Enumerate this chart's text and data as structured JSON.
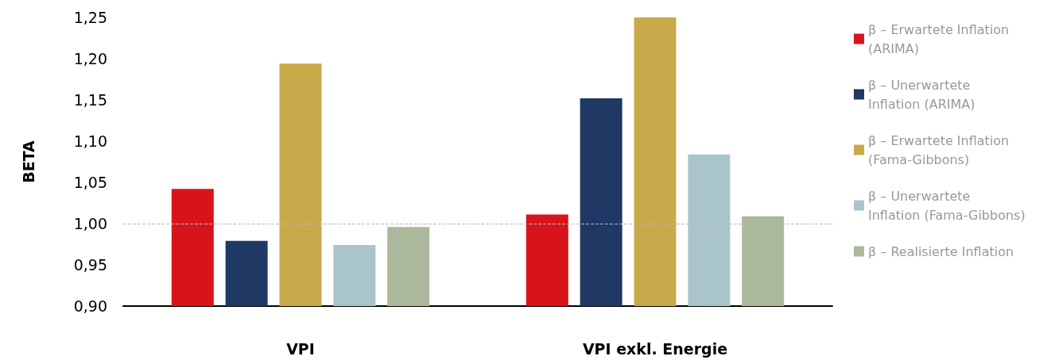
{
  "chart_data": {
    "type": "bar",
    "ylabel": "BETA",
    "categories": [
      "VPI",
      "VPI exkl. Energie"
    ],
    "series": [
      {
        "name": "β – Erwartete Inflation (ARIMA)",
        "color": "#d7141a",
        "values": [
          1.042,
          1.011
        ]
      },
      {
        "name": "β – Unerwartete Inflation (ARIMA)",
        "color": "#1f3864",
        "values": [
          0.979,
          1.152
        ]
      },
      {
        "name": "β – Erwartete Inflation (Fama-Gibbons)",
        "color": "#c8aa4b",
        "values": [
          1.194,
          1.25
        ]
      },
      {
        "name": "β – Unerwartete Inflation (Fama-Gibbons)",
        "color": "#a9c5ca",
        "values": [
          0.974,
          1.084
        ]
      },
      {
        "name": "β – Realisierte Inflation",
        "color": "#abb89c",
        "values": [
          0.996,
          1.009
        ]
      }
    ],
    "ylim": [
      0.9,
      1.25
    ],
    "yticks": [
      {
        "value": 0.9,
        "label": "0,90"
      },
      {
        "value": 0.95,
        "label": "0,95"
      },
      {
        "value": 1,
        "label": "1,00"
      },
      {
        "value": 1.05,
        "label": "1,05"
      },
      {
        "value": 1.1,
        "label": "1,10"
      },
      {
        "value": 1.15,
        "label": "1,15"
      },
      {
        "value": 1.2,
        "label": "1,20"
      },
      {
        "value": 1.25,
        "label": "1,25"
      }
    ],
    "ref_lines": [
      {
        "axis": "y",
        "value": 1,
        "color": "#bbbbbb",
        "line_style": "dashed"
      }
    ],
    "grid": false,
    "legend": "right"
  }
}
